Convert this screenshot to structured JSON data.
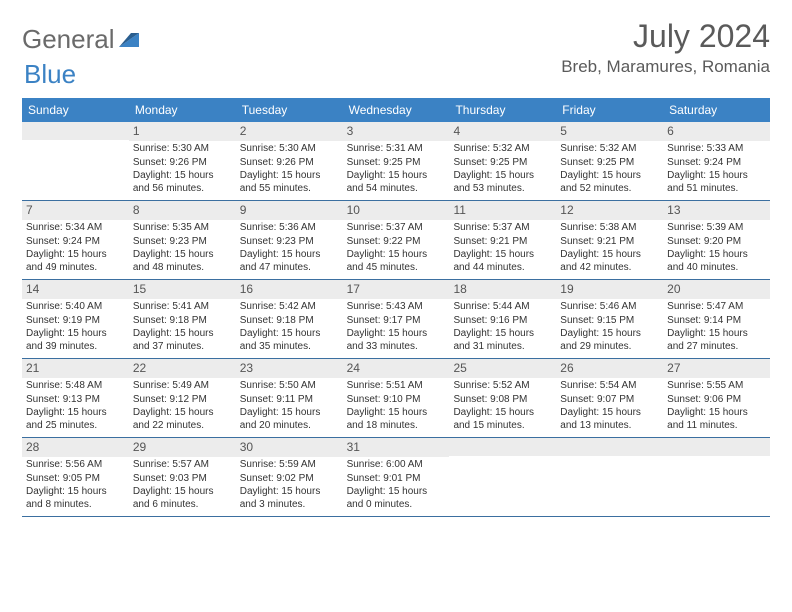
{
  "logo": {
    "word1": "General",
    "word2": "Blue"
  },
  "title": "July 2024",
  "location": "Breb, Maramures, Romania",
  "colors": {
    "header_blue": "#3b82c4",
    "daybar_gray": "#ececec",
    "text": "#333333",
    "title_gray": "#5a5a5a",
    "row_border": "#3b6fa0"
  },
  "weekdays": [
    "Sunday",
    "Monday",
    "Tuesday",
    "Wednesday",
    "Thursday",
    "Friday",
    "Saturday"
  ],
  "weeks": [
    [
      null,
      {
        "n": "1",
        "sunrise": "5:30 AM",
        "sunset": "9:26 PM",
        "daylight": "15 hours and 56 minutes."
      },
      {
        "n": "2",
        "sunrise": "5:30 AM",
        "sunset": "9:26 PM",
        "daylight": "15 hours and 55 minutes."
      },
      {
        "n": "3",
        "sunrise": "5:31 AM",
        "sunset": "9:25 PM",
        "daylight": "15 hours and 54 minutes."
      },
      {
        "n": "4",
        "sunrise": "5:32 AM",
        "sunset": "9:25 PM",
        "daylight": "15 hours and 53 minutes."
      },
      {
        "n": "5",
        "sunrise": "5:32 AM",
        "sunset": "9:25 PM",
        "daylight": "15 hours and 52 minutes."
      },
      {
        "n": "6",
        "sunrise": "5:33 AM",
        "sunset": "9:24 PM",
        "daylight": "15 hours and 51 minutes."
      }
    ],
    [
      {
        "n": "7",
        "sunrise": "5:34 AM",
        "sunset": "9:24 PM",
        "daylight": "15 hours and 49 minutes."
      },
      {
        "n": "8",
        "sunrise": "5:35 AM",
        "sunset": "9:23 PM",
        "daylight": "15 hours and 48 minutes."
      },
      {
        "n": "9",
        "sunrise": "5:36 AM",
        "sunset": "9:23 PM",
        "daylight": "15 hours and 47 minutes."
      },
      {
        "n": "10",
        "sunrise": "5:37 AM",
        "sunset": "9:22 PM",
        "daylight": "15 hours and 45 minutes."
      },
      {
        "n": "11",
        "sunrise": "5:37 AM",
        "sunset": "9:21 PM",
        "daylight": "15 hours and 44 minutes."
      },
      {
        "n": "12",
        "sunrise": "5:38 AM",
        "sunset": "9:21 PM",
        "daylight": "15 hours and 42 minutes."
      },
      {
        "n": "13",
        "sunrise": "5:39 AM",
        "sunset": "9:20 PM",
        "daylight": "15 hours and 40 minutes."
      }
    ],
    [
      {
        "n": "14",
        "sunrise": "5:40 AM",
        "sunset": "9:19 PM",
        "daylight": "15 hours and 39 minutes."
      },
      {
        "n": "15",
        "sunrise": "5:41 AM",
        "sunset": "9:18 PM",
        "daylight": "15 hours and 37 minutes."
      },
      {
        "n": "16",
        "sunrise": "5:42 AM",
        "sunset": "9:18 PM",
        "daylight": "15 hours and 35 minutes."
      },
      {
        "n": "17",
        "sunrise": "5:43 AM",
        "sunset": "9:17 PM",
        "daylight": "15 hours and 33 minutes."
      },
      {
        "n": "18",
        "sunrise": "5:44 AM",
        "sunset": "9:16 PM",
        "daylight": "15 hours and 31 minutes."
      },
      {
        "n": "19",
        "sunrise": "5:46 AM",
        "sunset": "9:15 PM",
        "daylight": "15 hours and 29 minutes."
      },
      {
        "n": "20",
        "sunrise": "5:47 AM",
        "sunset": "9:14 PM",
        "daylight": "15 hours and 27 minutes."
      }
    ],
    [
      {
        "n": "21",
        "sunrise": "5:48 AM",
        "sunset": "9:13 PM",
        "daylight": "15 hours and 25 minutes."
      },
      {
        "n": "22",
        "sunrise": "5:49 AM",
        "sunset": "9:12 PM",
        "daylight": "15 hours and 22 minutes."
      },
      {
        "n": "23",
        "sunrise": "5:50 AM",
        "sunset": "9:11 PM",
        "daylight": "15 hours and 20 minutes."
      },
      {
        "n": "24",
        "sunrise": "5:51 AM",
        "sunset": "9:10 PM",
        "daylight": "15 hours and 18 minutes."
      },
      {
        "n": "25",
        "sunrise": "5:52 AM",
        "sunset": "9:08 PM",
        "daylight": "15 hours and 15 minutes."
      },
      {
        "n": "26",
        "sunrise": "5:54 AM",
        "sunset": "9:07 PM",
        "daylight": "15 hours and 13 minutes."
      },
      {
        "n": "27",
        "sunrise": "5:55 AM",
        "sunset": "9:06 PM",
        "daylight": "15 hours and 11 minutes."
      }
    ],
    [
      {
        "n": "28",
        "sunrise": "5:56 AM",
        "sunset": "9:05 PM",
        "daylight": "15 hours and 8 minutes."
      },
      {
        "n": "29",
        "sunrise": "5:57 AM",
        "sunset": "9:03 PM",
        "daylight": "15 hours and 6 minutes."
      },
      {
        "n": "30",
        "sunrise": "5:59 AM",
        "sunset": "9:02 PM",
        "daylight": "15 hours and 3 minutes."
      },
      {
        "n": "31",
        "sunrise": "6:00 AM",
        "sunset": "9:01 PM",
        "daylight": "15 hours and 0 minutes."
      },
      null,
      null,
      null
    ]
  ],
  "labels": {
    "sunrise": "Sunrise:",
    "sunset": "Sunset:",
    "daylight": "Daylight:"
  }
}
